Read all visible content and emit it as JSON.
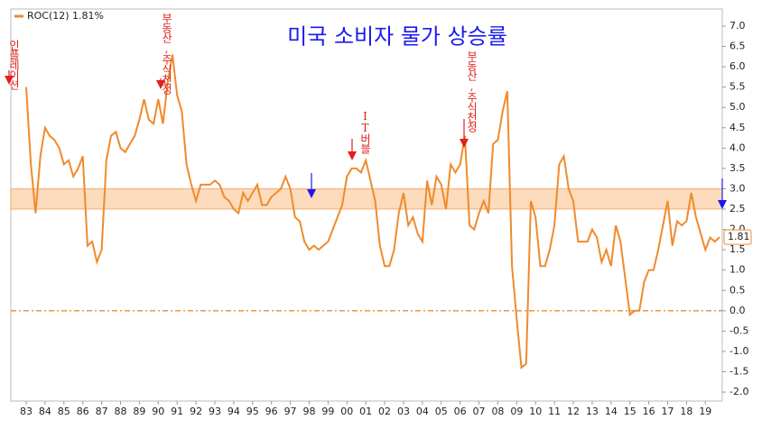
{
  "chart_data": {
    "type": "line",
    "title": "미국 소비자 물가 상승률",
    "categories": [
      "83",
      null,
      null,
      null,
      "84",
      null,
      null,
      null,
      "85",
      null,
      null,
      null,
      "86",
      null,
      null,
      null,
      "87",
      null,
      null,
      null,
      "88",
      null,
      null,
      null,
      "89",
      null,
      null,
      null,
      "90",
      null,
      null,
      null,
      "91",
      null,
      null,
      null,
      "92",
      null,
      null,
      null,
      "93",
      null,
      null,
      null,
      "94",
      null,
      null,
      null,
      "95",
      null,
      null,
      null,
      "96",
      null,
      null,
      null,
      "97",
      null,
      null,
      null,
      "98",
      null,
      null,
      null,
      "99",
      null,
      null,
      null,
      "00",
      null,
      null,
      null,
      "01",
      null,
      null,
      null,
      "02",
      null,
      null,
      null,
      "03",
      null,
      null,
      null,
      "04",
      null,
      null,
      null,
      "05",
      null,
      null,
      null,
      "06",
      null,
      null,
      null,
      "07",
      null,
      null,
      null,
      "08",
      null,
      null,
      null,
      "09",
      null,
      null,
      null,
      "10",
      null,
      null,
      null,
      "11",
      null,
      null,
      null,
      "12",
      null,
      null,
      null,
      "13",
      null,
      null,
      null,
      "14",
      null,
      null,
      null,
      "15",
      null,
      null,
      null,
      "16",
      null,
      null,
      null,
      "17",
      null,
      null,
      null,
      "18",
      null,
      null,
      null,
      "19",
      null,
      null,
      null
    ],
    "series": [
      {
        "name": "ROC(12) 1.81%",
        "color": "#f08a2c",
        "values": [
          5.5,
          3.6,
          2.4,
          3.8,
          4.5,
          4.3,
          4.2,
          4.0,
          3.6,
          3.7,
          3.3,
          3.5,
          3.8,
          1.6,
          1.7,
          1.2,
          1.5,
          3.7,
          4.3,
          4.4,
          4.0,
          3.9,
          4.1,
          4.3,
          4.7,
          5.2,
          4.7,
          4.6,
          5.2,
          4.6,
          5.6,
          6.3,
          5.3,
          4.9,
          3.6,
          3.1,
          2.7,
          3.1,
          3.1,
          3.1,
          3.2,
          3.1,
          2.8,
          2.7,
          2.5,
          2.4,
          2.9,
          2.7,
          2.9,
          3.1,
          2.6,
          2.6,
          2.8,
          2.9,
          3.0,
          3.3,
          3.0,
          2.3,
          2.2,
          1.7,
          1.5,
          1.6,
          1.5,
          1.6,
          1.7,
          2.0,
          2.3,
          2.6,
          3.3,
          3.5,
          3.5,
          3.4,
          3.7,
          3.2,
          2.7,
          1.6,
          1.1,
          1.1,
          1.5,
          2.4,
          2.9,
          2.1,
          2.3,
          1.9,
          1.7,
          3.2,
          2.6,
          3.3,
          3.1,
          2.5,
          3.6,
          3.4,
          3.6,
          4.3,
          2.1,
          2.0,
          2.4,
          2.7,
          2.4,
          4.1,
          4.2,
          4.9,
          5.4,
          1.1,
          -0.2,
          -1.4,
          -1.3,
          2.7,
          2.3,
          1.1,
          1.1,
          1.5,
          2.1,
          3.6,
          3.8,
          3.0,
          2.7,
          1.7,
          1.7,
          1.7,
          2.0,
          1.8,
          1.2,
          1.5,
          1.1,
          2.1,
          1.7,
          0.8,
          -0.1,
          0.0,
          0.0,
          0.7,
          1.0,
          1.0,
          1.5,
          2.1,
          2.7,
          1.6,
          2.2,
          2.1,
          2.2,
          2.9,
          2.3,
          1.9,
          1.5,
          1.8,
          1.7,
          1.81
        ]
      }
    ],
    "ylim": [
      -2.22,
      7.42
    ],
    "yticks": [
      {
        "value": 7,
        "label": "7.0"
      },
      6.5,
      {
        "value": 6,
        "label": "6.0"
      },
      5.5,
      {
        "value": 5,
        "label": "5.0"
      },
      4.5,
      {
        "value": 4,
        "label": "4.0"
      },
      3.5,
      {
        "value": 3,
        "label": "3.0"
      },
      2.5,
      {
        "value": 2,
        "label": "2.0"
      },
      1.5,
      {
        "value": 1,
        "label": "1.0"
      },
      0.5,
      {
        "value": 0,
        "label": "0.0"
      },
      -0.5,
      {
        "value": -1,
        "label": "-1.0"
      },
      -1.5,
      {
        "value": -2,
        "label": "-2.0"
      }
    ],
    "band": [
      2.5,
      3.0
    ],
    "reference_line": 0,
    "annotations": [
      "인플레이션",
      "부동산,주식천정",
      "IT버블",
      "부동산,주식천정"
    ]
  }
}
